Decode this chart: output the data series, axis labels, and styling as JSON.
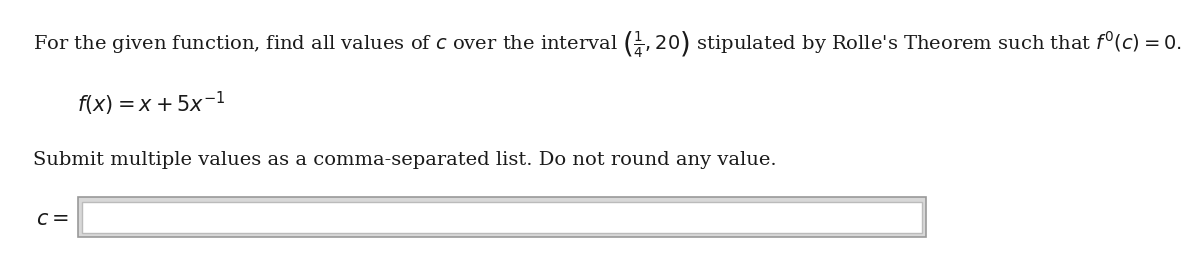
{
  "background_color": "#ffffff",
  "line1": "For the given function, find all values of $c$ over the interval $\\left(\\frac{1}{4},20\\right)$ stipulated by Rolle's Theorem such that $f'(c) = 0.$",
  "line2": "$f(x) = x + 5x^{-1}$",
  "line3": "Submit multiple values as a comma-separated list. Do not round any value.",
  "label_c": "$c =$",
  "font_size_main": 14,
  "font_size_line2": 15,
  "text_color": "#1a1a1a",
  "box_outer_color": "#999999",
  "box_inner_color": "#bbbbbb",
  "box_fill": "#ffffff",
  "box_outer_fill": "#d8d8d8"
}
